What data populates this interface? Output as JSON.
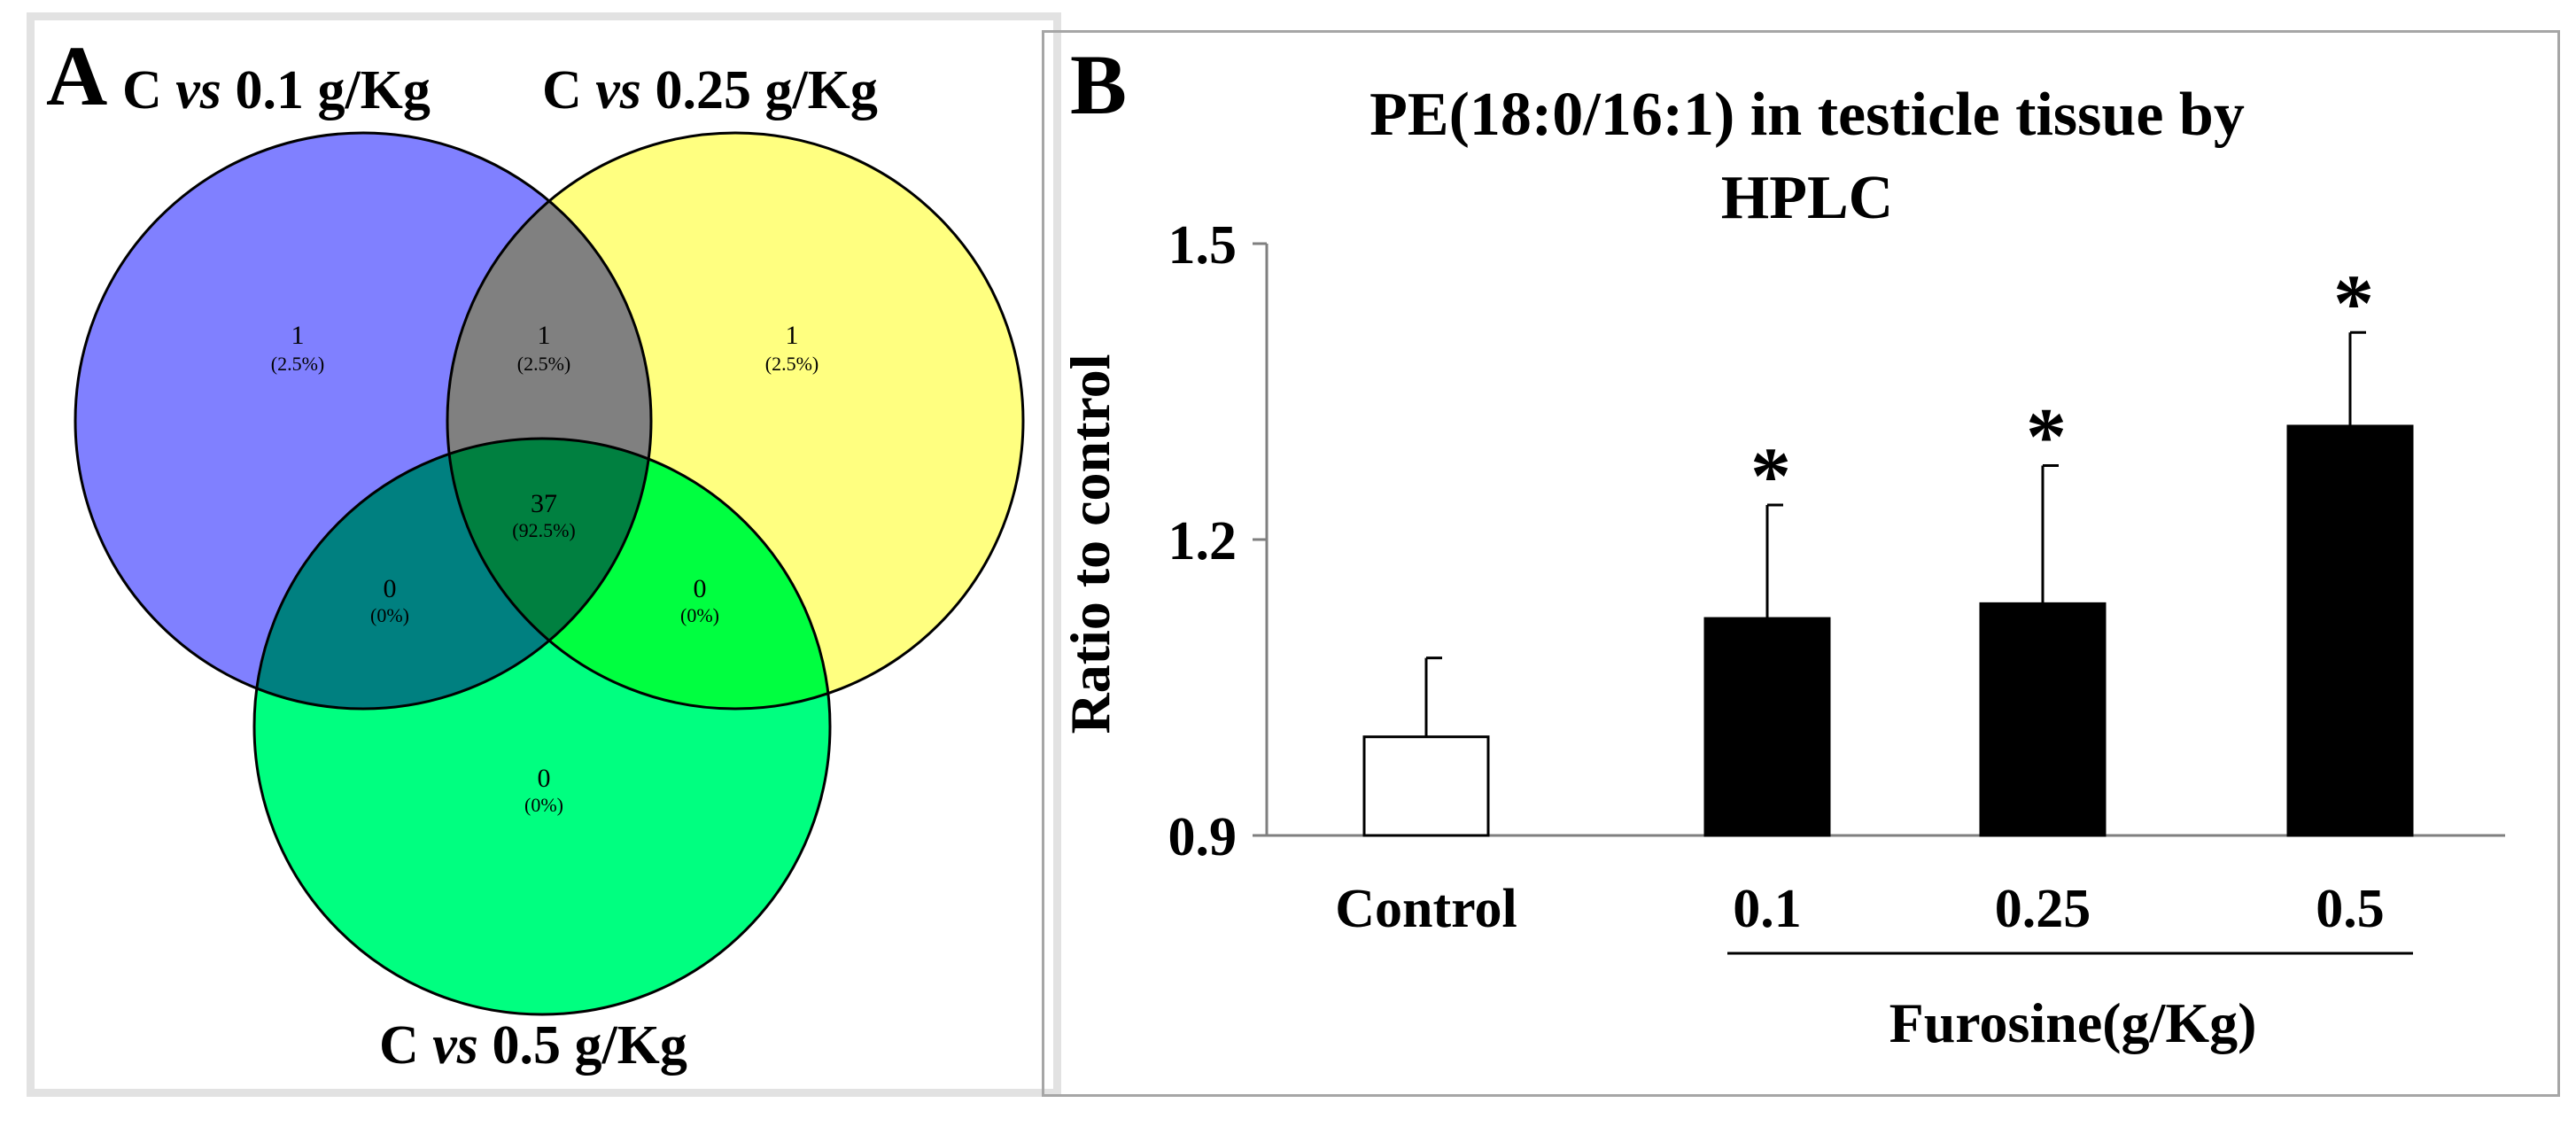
{
  "panel_a": {
    "panel_label": "A",
    "sets": [
      {
        "prefix": "C ",
        "vs": "vs",
        "suffix": " 0.1 g/Kg",
        "color": "#8080ff"
      },
      {
        "prefix": "C ",
        "vs": "vs",
        "suffix": " 0.25 g/Kg",
        "color": "#ffff80"
      },
      {
        "prefix": "C ",
        "vs": "vs",
        "suffix": " 0.5 g/Kg",
        "color": "#00ff80"
      }
    ],
    "regions": [
      {
        "id": "only-0.1",
        "count": "1",
        "pct": "(2.5%)"
      },
      {
        "id": "0.1-and-0.25",
        "count": "1",
        "pct": "(2.5%)"
      },
      {
        "id": "only-0.25",
        "count": "1",
        "pct": "(2.5%)"
      },
      {
        "id": "all-three",
        "count": "37",
        "pct": "(92.5%)"
      },
      {
        "id": "0.1-and-0.5",
        "count": "0",
        "pct": "(0%)"
      },
      {
        "id": "0.25-and-0.5",
        "count": "0",
        "pct": "(0%)"
      },
      {
        "id": "only-0.5",
        "count": "0",
        "pct": "(0%)"
      }
    ]
  },
  "chart_data": {
    "type": "bar",
    "panel_label": "B",
    "title_lines": [
      "PE(18:0/16:1) in testicle tissue by",
      "HPLC"
    ],
    "ylabel": "Ratio to control",
    "xlabel": "Furosine(g/Kg)",
    "categories": [
      "Control",
      "0.1",
      "0.25",
      "0.5"
    ],
    "values": [
      1.0,
      1.12,
      1.135,
      1.315
    ],
    "errors": [
      0.08,
      0.115,
      0.14,
      0.095
    ],
    "significance": [
      "",
      "*",
      "*",
      "*"
    ],
    "bar_colors": [
      "#ffffff",
      "#000000",
      "#000000",
      "#000000"
    ],
    "ylim": [
      0.9,
      1.5
    ],
    "yticks": [
      "0.9",
      "1.2",
      "1.5"
    ],
    "ytick_values": [
      0.9,
      1.2,
      1.5
    ]
  }
}
